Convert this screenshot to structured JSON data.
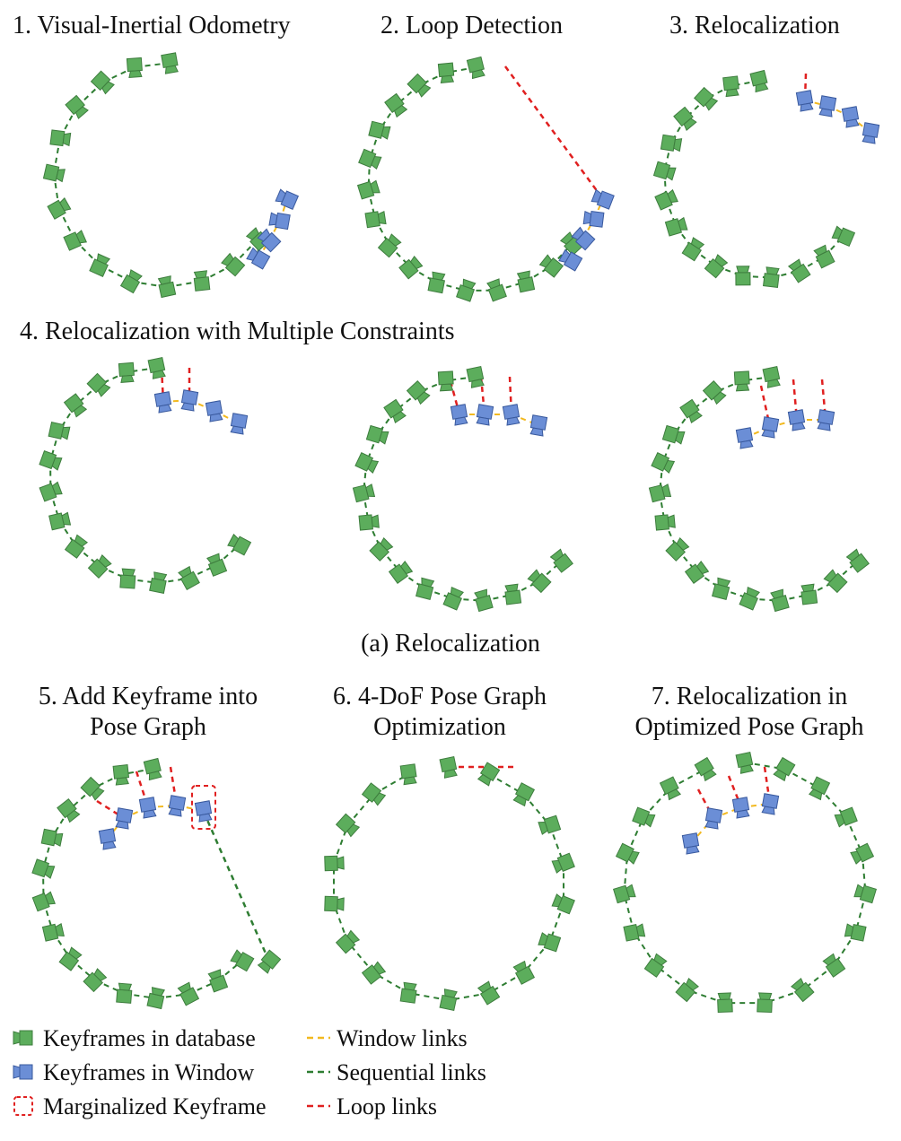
{
  "colors": {
    "keyframe_database": "#5cad5c",
    "keyframe_database_edge": "#3e7d3e",
    "keyframe_window": "#6b8ed6",
    "keyframe_window_edge": "#3a5a9e",
    "window_link": "#f2b920",
    "sequential_link": "#2e7d32",
    "loop_link": "#e02020",
    "marginalized_box": "#e02020"
  },
  "panels": {
    "p1": {
      "title": "1. Visual-Inertial Odometry"
    },
    "p2": {
      "title": "2. Loop Detection"
    },
    "p3": {
      "title": "3. Relocalization"
    },
    "p4": {
      "title": "4. Relocalization with Multiple Constraints"
    },
    "p5": {
      "title_line1": "5. Add Keyframe into",
      "title_line2": "Pose Graph"
    },
    "p6": {
      "title_line1": "6. 4-DoF Pose Graph",
      "title_line2": "Optimization"
    },
    "p7": {
      "title_line1": "7. Relocalization in",
      "title_line2": "Optimized Pose Graph"
    }
  },
  "section_caption": "(a)  Relocalization",
  "legend": {
    "keyframes_database": "Keyframes in database",
    "keyframes_window": "Keyframes in Window",
    "marginalized_keyframe": "Marginalized Keyframe",
    "window_links": "Window links",
    "sequential_links": "Sequential links",
    "loop_links": "Loop links",
    "window_links_icon": "dashed-line-icon",
    "sequential_links_icon": "dashed-line-icon",
    "loop_links_icon": "dashed-line-icon"
  }
}
